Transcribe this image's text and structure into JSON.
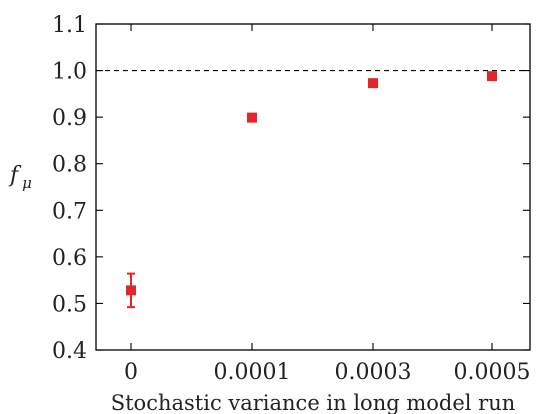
{
  "chart_data": {
    "type": "scatter",
    "categories": [
      "0",
      "0.0001",
      "0.0003",
      "0.0005"
    ],
    "series": [
      {
        "color": "#e3262b",
        "values": [
          0.528,
          0.899,
          0.973,
          0.988
        ],
        "errors": [
          0.036,
          0.0,
          0.0,
          0.0
        ]
      }
    ],
    "reference_line": {
      "y": 1.0,
      "style": "dashed"
    },
    "ylim": [
      0.4,
      1.1
    ],
    "yticks": [
      "0.4",
      "0.5",
      "0.6",
      "0.7",
      "0.8",
      "0.9",
      "1.0",
      "1.1"
    ],
    "xlabel": "Stochastic variance in long model run",
    "ylabel": {
      "main": "f",
      "sub": "μ"
    },
    "grid": false,
    "legend": "none"
  }
}
